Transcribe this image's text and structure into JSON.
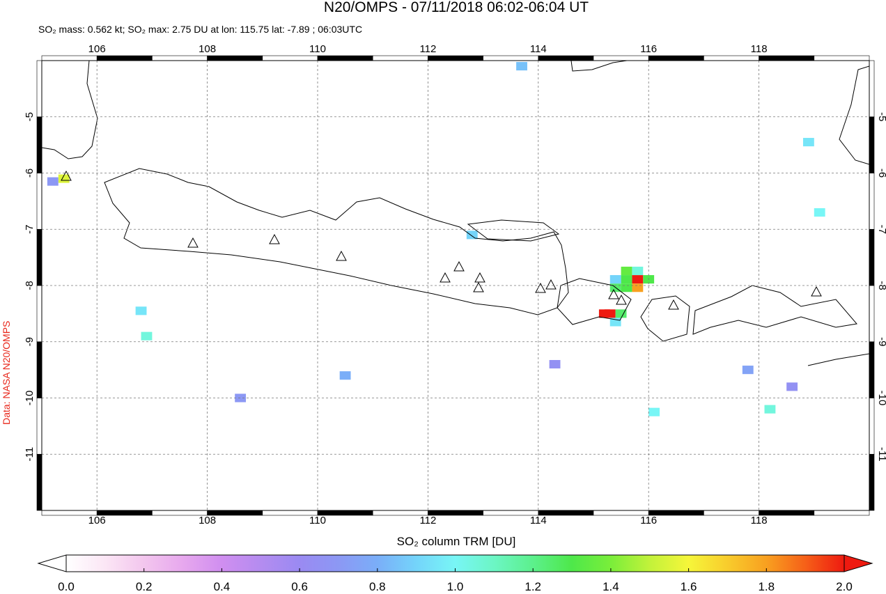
{
  "header": {
    "title": "N20/OMPS - 07/11/2018 06:02-06:04 UT",
    "subtitle": "SO₂ mass: 0.562 kt; SO₂ max: 2.75 DU at lon: 115.75 lat: -7.89 ; 06:03UTC"
  },
  "map": {
    "lon_range": [
      105,
      120
    ],
    "lat_range": [
      -12,
      -4
    ],
    "lon_ticks": [
      106,
      108,
      110,
      112,
      114,
      116,
      118
    ],
    "lat_ticks": [
      -5,
      -6,
      -7,
      -8,
      -9,
      -10,
      -11
    ],
    "grid": true
  },
  "so2_pixels": [
    {
      "lon": 115.8,
      "lat": -7.89,
      "value": 2.75
    },
    {
      "lon": 115.8,
      "lat": -8.04,
      "value": 1.8
    },
    {
      "lon": 115.6,
      "lat": -7.74,
      "value": 1.35
    },
    {
      "lon": 115.6,
      "lat": -7.89,
      "value": 1.3
    },
    {
      "lon": 115.4,
      "lat": -8.04,
      "value": 1.25
    },
    {
      "lon": 115.6,
      "lat": -8.04,
      "value": 1.3
    },
    {
      "lon": 115.8,
      "lat": -7.74,
      "value": 1.05
    },
    {
      "lon": 116.0,
      "lat": -7.89,
      "value": 1.3
    },
    {
      "lon": 115.4,
      "lat": -7.89,
      "value": 0.9
    },
    {
      "lon": 115.2,
      "lat": -8.5,
      "value": 2.0
    },
    {
      "lon": 115.3,
      "lat": -8.5,
      "value": 2.0
    },
    {
      "lon": 115.5,
      "lat": -8.5,
      "value": 1.25
    },
    {
      "lon": 115.4,
      "lat": -8.65,
      "value": 0.95
    },
    {
      "lon": 105.4,
      "lat": -6.1,
      "value": 1.55
    },
    {
      "lon": 105.2,
      "lat": -6.15,
      "value": 0.7
    },
    {
      "lon": 106.9,
      "lat": -8.9,
      "value": 1.05
    },
    {
      "lon": 106.8,
      "lat": -8.45,
      "value": 0.95
    },
    {
      "lon": 119.1,
      "lat": -6.7,
      "value": 1.0
    },
    {
      "lon": 118.9,
      "lat": -5.45,
      "value": 0.95
    },
    {
      "lon": 118.2,
      "lat": -10.2,
      "value": 1.05
    },
    {
      "lon": 116.1,
      "lat": -10.25,
      "value": 1.0
    },
    {
      "lon": 113.7,
      "lat": -4.1,
      "value": 0.85
    },
    {
      "lon": 112.8,
      "lat": -7.1,
      "value": 0.9
    },
    {
      "lon": 110.5,
      "lat": -9.6,
      "value": 0.8
    },
    {
      "lon": 108.6,
      "lat": -10.0,
      "value": 0.7
    },
    {
      "lon": 114.3,
      "lat": -9.4,
      "value": 0.65
    },
    {
      "lon": 117.8,
      "lat": -9.5,
      "value": 0.75
    },
    {
      "lon": 118.6,
      "lat": -9.8,
      "value": 0.65
    }
  ],
  "colorbar": {
    "label": "SO₂ column TRM [DU]",
    "range": [
      0,
      2
    ],
    "ticks": [
      {
        "value": 0,
        "label": "0.0"
      },
      {
        "value": 0.2,
        "label": "0.2"
      },
      {
        "value": 0.4,
        "label": "0.4"
      },
      {
        "value": 0.6,
        "label": "0.6"
      },
      {
        "value": 0.8,
        "label": "0.8"
      },
      {
        "value": 1,
        "label": "1.0"
      },
      {
        "value": 1.2,
        "label": "1.2"
      },
      {
        "value": 1.4,
        "label": "1.4"
      },
      {
        "value": 1.6,
        "label": "1.6"
      },
      {
        "value": 1.8,
        "label": "1.8"
      },
      {
        "value": 2,
        "label": "2.0"
      }
    ]
  },
  "credit": "Data: NASA N20/OMPS"
}
